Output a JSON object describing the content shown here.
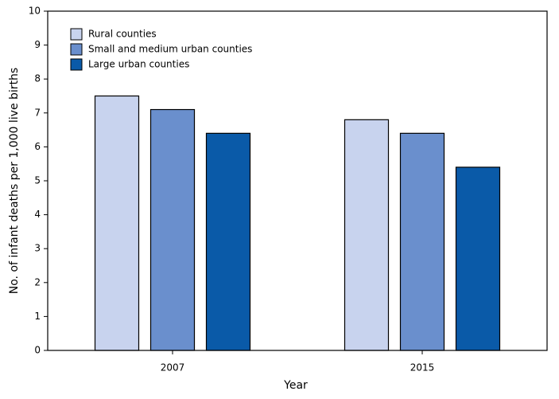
{
  "chart_data": {
    "type": "bar",
    "x_label": "Year",
    "y_label": "No. of infant deaths per 1,000 live births",
    "categories": [
      "2007",
      "2015"
    ],
    "series": [
      {
        "name": "Rural counties",
        "color": "#c8d3ee",
        "values": [
          7.5,
          6.8
        ]
      },
      {
        "name": "Small and medium urban counties",
        "color": "#6a8fcd",
        "values": [
          7.1,
          6.4
        ]
      },
      {
        "name": "Large urban counties",
        "color": "#0a5aa8",
        "values": [
          6.4,
          5.4
        ]
      }
    ],
    "ylim": [
      0,
      10
    ],
    "yticks": [
      0,
      1,
      2,
      3,
      4,
      5,
      6,
      7,
      8,
      9,
      10
    ],
    "legend": "upper-left"
  }
}
